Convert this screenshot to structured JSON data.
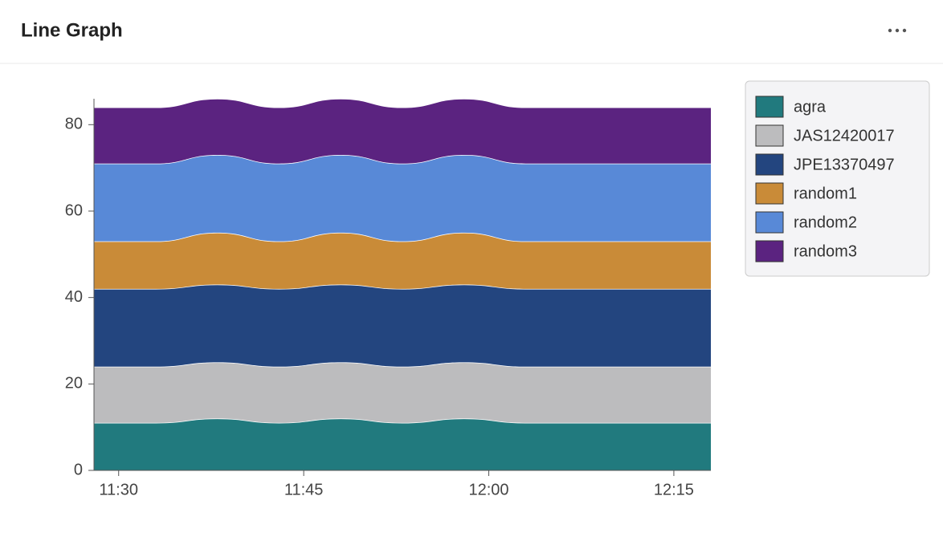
{
  "header": {
    "title": "Line Graph"
  },
  "chart_data": {
    "type": "area",
    "stacked": true,
    "x": [
      "11:28",
      "11:33",
      "11:38",
      "11:43",
      "11:48",
      "11:53",
      "11:58",
      "12:03",
      "12:08",
      "12:13",
      "12:18"
    ],
    "series": [
      {
        "name": "agra",
        "color": "#217a7e",
        "values": [
          11,
          11,
          12,
          11,
          12,
          11,
          12,
          11,
          11,
          11,
          11
        ]
      },
      {
        "name": "JAS12420017",
        "color": "#bcbcbe",
        "values": [
          13,
          13,
          13,
          13,
          13,
          13,
          13,
          13,
          13,
          13,
          13
        ]
      },
      {
        "name": "JPE13370497",
        "color": "#23457f",
        "values": [
          18,
          18,
          18,
          18,
          18,
          18,
          18,
          18,
          18,
          18,
          18
        ]
      },
      {
        "name": "random1",
        "color": "#c98b38",
        "values": [
          11,
          11,
          12,
          11,
          12,
          11,
          12,
          11,
          11,
          11,
          11
        ]
      },
      {
        "name": "random2",
        "color": "#5889d7",
        "values": [
          18,
          18,
          18,
          18,
          18,
          18,
          18,
          18,
          18,
          18,
          18
        ]
      },
      {
        "name": "random3",
        "color": "#5b2380",
        "values": [
          13,
          13,
          13,
          13,
          13,
          13,
          13,
          13,
          13,
          13,
          13
        ]
      }
    ],
    "xlim": [
      "11:28",
      "12:18"
    ],
    "xticks": [
      "11:30",
      "11:45",
      "12:00",
      "12:15"
    ],
    "ylim": [
      0,
      86
    ],
    "yticks": [
      0,
      20,
      40,
      60,
      80
    ],
    "legend": "top-right"
  }
}
